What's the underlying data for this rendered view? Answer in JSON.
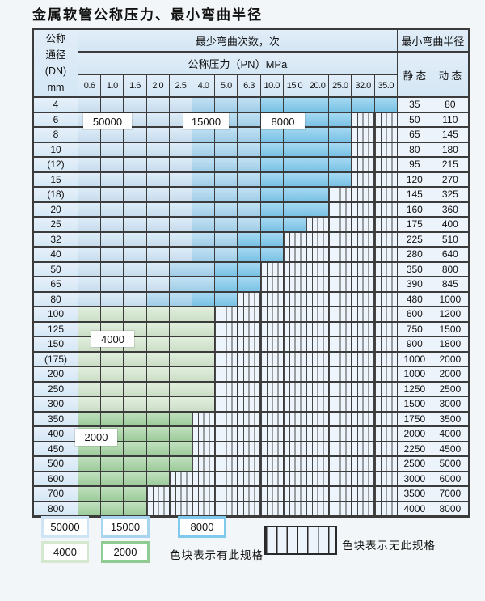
{
  "title": "金属软管公称压力、最小弯曲半径",
  "table": {
    "header": {
      "dn_lines": [
        "公称",
        "通径",
        "(DN)",
        "mm"
      ],
      "bend_times": "最少弯曲次数，次",
      "pn": "公称压力（PN）MPa",
      "min_radius": "最小弯曲半径",
      "static_label": "静 态",
      "dynamic_label": "动 态",
      "pressures": [
        "0.6",
        "1.0",
        "1.6",
        "2.0",
        "2.5",
        "4.0",
        "5.0",
        "6.3",
        "10.0",
        "15.0",
        "20.0",
        "25.0",
        "32.0",
        "35.0"
      ]
    },
    "band_meaning": {
      "L": "50000",
      "M": "15000",
      "D": "8000",
      "G": "4000",
      "H": "2000",
      "S": "无此规格"
    },
    "rows": [
      {
        "dn": "4",
        "bands": "LLLLLMMMDDDDDD",
        "static": "35",
        "dynamic": "80"
      },
      {
        "dn": "6",
        "bands": "LLLLLMMMDDDDSS",
        "static": "50",
        "dynamic": "110"
      },
      {
        "dn": "8",
        "bands": "LLLLLMMMDDDDSS",
        "static": "65",
        "dynamic": "145"
      },
      {
        "dn": "10",
        "bands": "LLLLLMMMDDDDSS",
        "static": "80",
        "dynamic": "180"
      },
      {
        "dn": "(12)",
        "bands": "LLLLLMMMDDDDSS",
        "static": "95",
        "dynamic": "215"
      },
      {
        "dn": "15",
        "bands": "LLLLLMMMDDDDSS",
        "static": "120",
        "dynamic": "270"
      },
      {
        "dn": "(18)",
        "bands": "LLLLLMMMDDDSSS",
        "static": "145",
        "dynamic": "325"
      },
      {
        "dn": "20",
        "bands": "LLLLLMMMDDDSSS",
        "static": "160",
        "dynamic": "360"
      },
      {
        "dn": "25",
        "bands": "LLLLLMMMDDSSSS",
        "static": "175",
        "dynamic": "400"
      },
      {
        "dn": "32",
        "bands": "LLLLLMMDDSSSSS",
        "static": "225",
        "dynamic": "510"
      },
      {
        "dn": "40",
        "bands": "LLLLLMMDDSSSSS",
        "static": "280",
        "dynamic": "640"
      },
      {
        "dn": "50",
        "bands": "LLLLMMDDSSSSSS",
        "static": "350",
        "dynamic": "800"
      },
      {
        "dn": "65",
        "bands": "LLLLMMDDSSSSSS",
        "static": "390",
        "dynamic": "845"
      },
      {
        "dn": "80",
        "bands": "LLLMMDDSSSSSSS",
        "static": "480",
        "dynamic": "1000"
      },
      {
        "dn": "100",
        "bands": "GGGGGGSSSSSSSS",
        "static": "600",
        "dynamic": "1200"
      },
      {
        "dn": "125",
        "bands": "GGGGGGSSSSSSSS",
        "static": "750",
        "dynamic": "1500"
      },
      {
        "dn": "150",
        "bands": "GGGGGGSSSSSSSS",
        "static": "900",
        "dynamic": "1800"
      },
      {
        "dn": "(175)",
        "bands": "GGGGGGSSSSSSSS",
        "static": "1000",
        "dynamic": "2000"
      },
      {
        "dn": "200",
        "bands": "GGGGGGSSSSSSSS",
        "static": "1000",
        "dynamic": "2000"
      },
      {
        "dn": "250",
        "bands": "GGGGGGSSSSSSSS",
        "static": "1250",
        "dynamic": "2500"
      },
      {
        "dn": "300",
        "bands": "GGGGGGSSSSSSSS",
        "static": "1500",
        "dynamic": "3000"
      },
      {
        "dn": "350",
        "bands": "HHHHHSSSSSSSSS",
        "static": "1750",
        "dynamic": "3500"
      },
      {
        "dn": "400",
        "bands": "HHHHHSSSSSSSSS",
        "static": "2000",
        "dynamic": "4000"
      },
      {
        "dn": "450",
        "bands": "HHHHHSSSSSSSSS",
        "static": "2250",
        "dynamic": "4500"
      },
      {
        "dn": "500",
        "bands": "HHHHHSSSSSSSSS",
        "static": "2500",
        "dynamic": "5000"
      },
      {
        "dn": "600",
        "bands": "HHHHSSSSSSSSSS",
        "static": "3000",
        "dynamic": "6000"
      },
      {
        "dn": "700",
        "bands": "HHHSSSSSSSSSSS",
        "static": "3500",
        "dynamic": "7000"
      },
      {
        "dn": "800",
        "bands": "HHHSSSSSSSSSSS",
        "static": "4000",
        "dynamic": "8000"
      }
    ],
    "overlay_labels": [
      "50000",
      "15000",
      "8000",
      "4000",
      "2000"
    ]
  },
  "legend": {
    "swatches": [
      {
        "label": "50000",
        "type": "L"
      },
      {
        "label": "15000",
        "type": "M"
      },
      {
        "label": "8000",
        "type": "D"
      },
      {
        "label": "4000",
        "type": "G"
      },
      {
        "label": "2000",
        "type": "H"
      }
    ],
    "has_spec_text": "色块表示有此规格",
    "no_spec_text": "色块表示无此规格"
  },
  "colors": {
    "band_50000": "#cfe5f6",
    "band_15000": "#a7d5f0",
    "band_8000": "#7ec9ed",
    "band_4000": "#d4e7cf",
    "band_2000": "#a3d3a1",
    "no_spec_bg": "#eef4fb",
    "border": "#3b3b3b"
  }
}
